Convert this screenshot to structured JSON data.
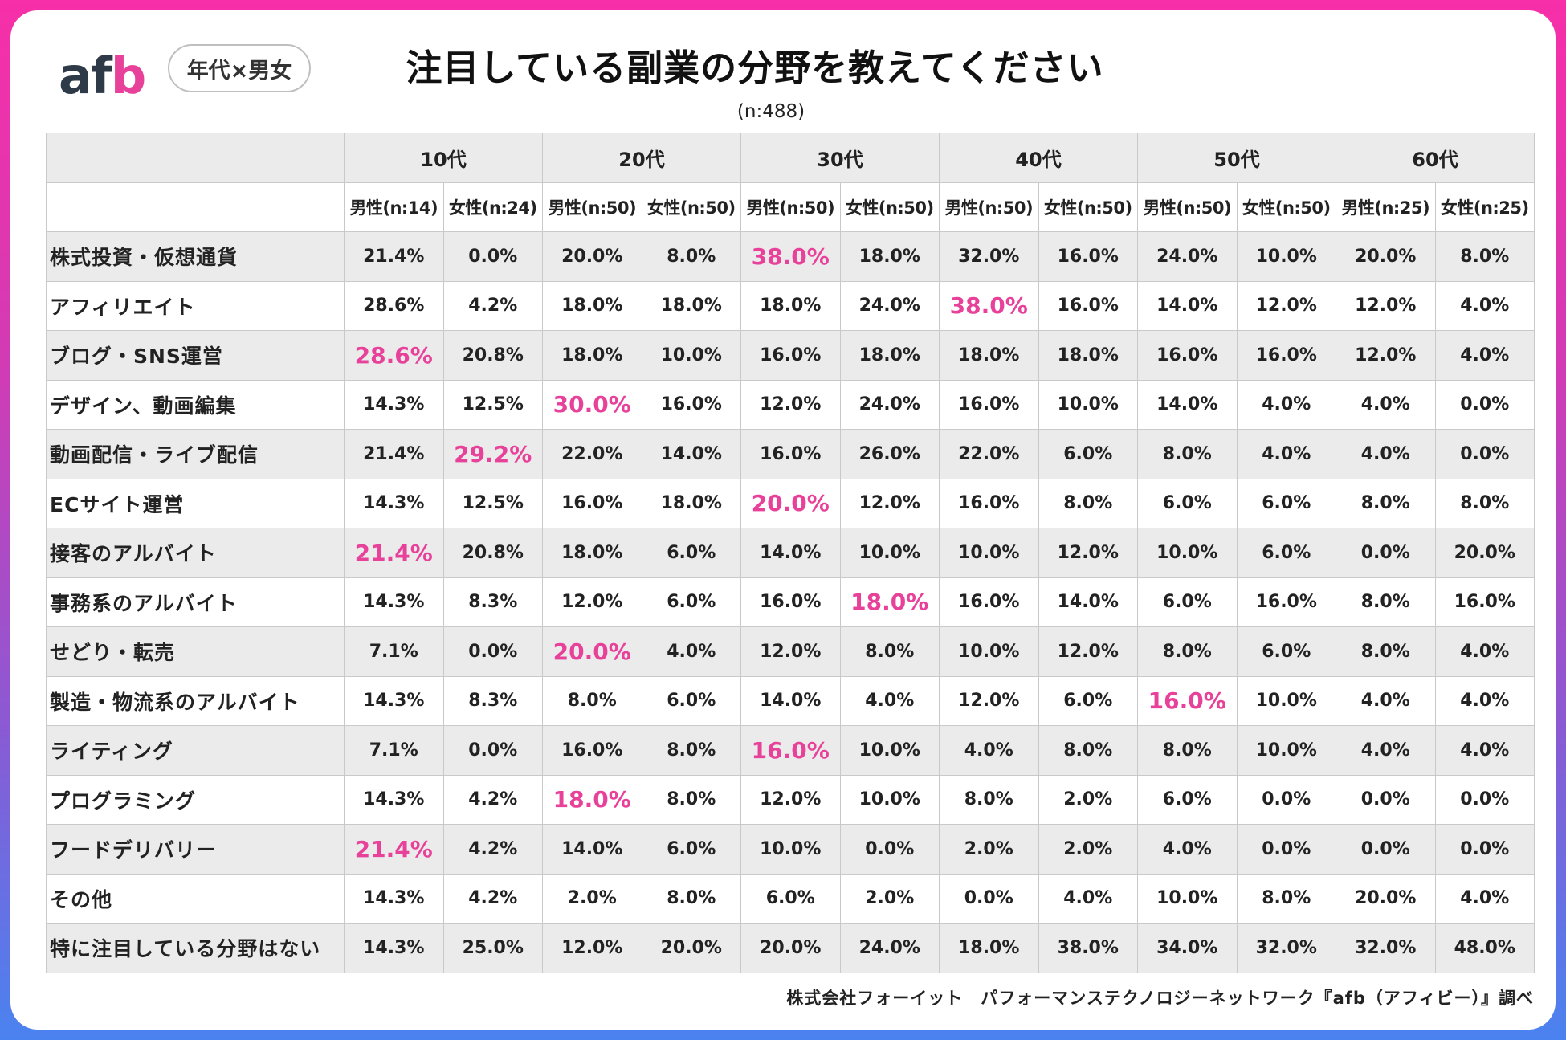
{
  "header": {
    "logo": {
      "a": "a",
      "f": "f",
      "b": "b"
    },
    "badge": "年代×男女",
    "title": "注目している副業の分野を教えてください",
    "sample": "(n:488)"
  },
  "colors": {
    "highlight": "#e8419a",
    "shade": "#ebebeb",
    "border": "#c9c9c9"
  },
  "chart_data": {
    "type": "table",
    "title": "注目している副業の分野を教えてください",
    "sample_size": "(n:488)",
    "age_groups": [
      "10代",
      "20代",
      "30代",
      "40代",
      "50代",
      "60代"
    ],
    "sub_columns": [
      "男性(n:14)",
      "女性(n:24)",
      "男性(n:50)",
      "女性(n:50)",
      "男性(n:50)",
      "女性(n:50)",
      "男性(n:50)",
      "女性(n:50)",
      "男性(n:50)",
      "女性(n:50)",
      "男性(n:25)",
      "女性(n:25)"
    ],
    "rows": [
      {
        "label": "株式投資・仮想通貨",
        "values": [
          "21.4%",
          "0.0%",
          "20.0%",
          "8.0%",
          "38.0%",
          "18.0%",
          "32.0%",
          "16.0%",
          "24.0%",
          "10.0%",
          "20.0%",
          "8.0%"
        ],
        "highlight": [
          4
        ]
      },
      {
        "label": "アフィリエイト",
        "values": [
          "28.6%",
          "4.2%",
          "18.0%",
          "18.0%",
          "18.0%",
          "24.0%",
          "38.0%",
          "16.0%",
          "14.0%",
          "12.0%",
          "12.0%",
          "4.0%"
        ],
        "highlight": [
          6
        ]
      },
      {
        "label": "ブログ・SNS運営",
        "values": [
          "28.6%",
          "20.8%",
          "18.0%",
          "10.0%",
          "16.0%",
          "18.0%",
          "18.0%",
          "18.0%",
          "16.0%",
          "16.0%",
          "12.0%",
          "4.0%"
        ],
        "highlight": [
          0
        ]
      },
      {
        "label": "デザイン、動画編集",
        "values": [
          "14.3%",
          "12.5%",
          "30.0%",
          "16.0%",
          "12.0%",
          "24.0%",
          "16.0%",
          "10.0%",
          "14.0%",
          "4.0%",
          "4.0%",
          "0.0%"
        ],
        "highlight": [
          2
        ]
      },
      {
        "label": "動画配信・ライブ配信",
        "values": [
          "21.4%",
          "29.2%",
          "22.0%",
          "14.0%",
          "16.0%",
          "26.0%",
          "22.0%",
          "6.0%",
          "8.0%",
          "4.0%",
          "4.0%",
          "0.0%"
        ],
        "highlight": [
          1
        ]
      },
      {
        "label": "ECサイト運営",
        "values": [
          "14.3%",
          "12.5%",
          "16.0%",
          "18.0%",
          "20.0%",
          "12.0%",
          "16.0%",
          "8.0%",
          "6.0%",
          "6.0%",
          "8.0%",
          "8.0%"
        ],
        "highlight": [
          4
        ]
      },
      {
        "label": "接客のアルバイト",
        "values": [
          "21.4%",
          "20.8%",
          "18.0%",
          "6.0%",
          "14.0%",
          "10.0%",
          "10.0%",
          "12.0%",
          "10.0%",
          "6.0%",
          "0.0%",
          "20.0%"
        ],
        "highlight": [
          0
        ]
      },
      {
        "label": "事務系のアルバイト",
        "values": [
          "14.3%",
          "8.3%",
          "12.0%",
          "6.0%",
          "16.0%",
          "18.0%",
          "16.0%",
          "14.0%",
          "6.0%",
          "16.0%",
          "8.0%",
          "16.0%"
        ],
        "highlight": [
          5
        ]
      },
      {
        "label": "せどり・転売",
        "values": [
          "7.1%",
          "0.0%",
          "20.0%",
          "4.0%",
          "12.0%",
          "8.0%",
          "10.0%",
          "12.0%",
          "8.0%",
          "6.0%",
          "8.0%",
          "4.0%"
        ],
        "highlight": [
          2
        ]
      },
      {
        "label": "製造・物流系のアルバイト",
        "values": [
          "14.3%",
          "8.3%",
          "8.0%",
          "6.0%",
          "14.0%",
          "4.0%",
          "12.0%",
          "6.0%",
          "16.0%",
          "10.0%",
          "4.0%",
          "4.0%"
        ],
        "highlight": [
          8
        ]
      },
      {
        "label": "ライティング",
        "values": [
          "7.1%",
          "0.0%",
          "16.0%",
          "8.0%",
          "16.0%",
          "10.0%",
          "4.0%",
          "8.0%",
          "8.0%",
          "10.0%",
          "4.0%",
          "4.0%"
        ],
        "highlight": [
          4
        ]
      },
      {
        "label": "プログラミング",
        "values": [
          "14.3%",
          "4.2%",
          "18.0%",
          "8.0%",
          "12.0%",
          "10.0%",
          "8.0%",
          "2.0%",
          "6.0%",
          "0.0%",
          "0.0%",
          "0.0%"
        ],
        "highlight": [
          2
        ]
      },
      {
        "label": "フードデリバリー",
        "values": [
          "21.4%",
          "4.2%",
          "14.0%",
          "6.0%",
          "10.0%",
          "0.0%",
          "2.0%",
          "2.0%",
          "4.0%",
          "0.0%",
          "0.0%",
          "0.0%"
        ],
        "highlight": [
          0
        ]
      },
      {
        "label": "その他",
        "values": [
          "14.3%",
          "4.2%",
          "2.0%",
          "8.0%",
          "6.0%",
          "2.0%",
          "0.0%",
          "4.0%",
          "10.0%",
          "8.0%",
          "20.0%",
          "4.0%"
        ],
        "highlight": []
      },
      {
        "label": "特に注目している分野はない",
        "values": [
          "14.3%",
          "25.0%",
          "12.0%",
          "20.0%",
          "20.0%",
          "24.0%",
          "18.0%",
          "38.0%",
          "34.0%",
          "32.0%",
          "32.0%",
          "48.0%"
        ],
        "highlight": []
      }
    ]
  },
  "footer": {
    "source": "株式会社フォーイット　パフォーマンステクノロジーネットワーク『afb（アフィビー）』調べ"
  }
}
